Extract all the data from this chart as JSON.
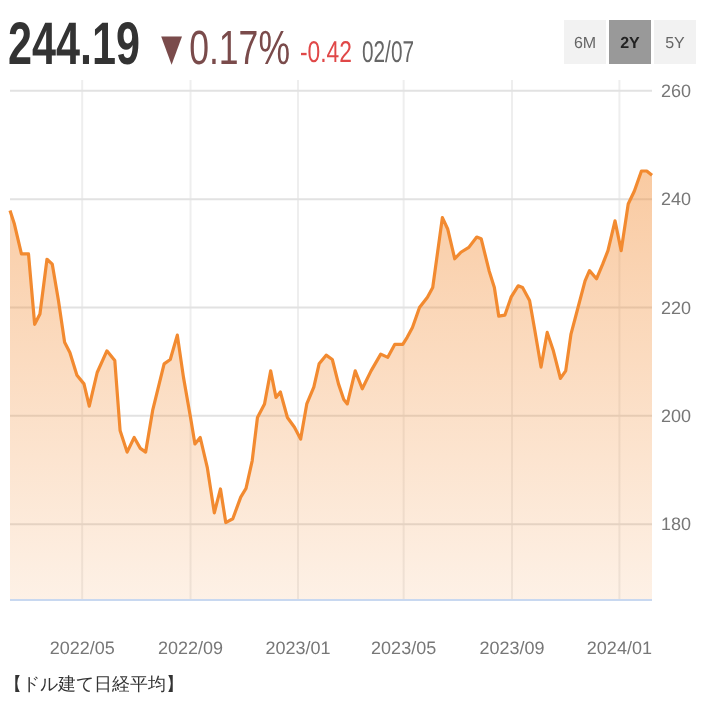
{
  "chart_data": {
    "type": "area",
    "title": "244.19",
    "annotations": [
      "▼0.17%",
      "-0.42",
      "02/07",
      "6M",
      "2Y",
      "5Y",
      "【ドル建て日経平均】"
    ],
    "color": "#f28a30",
    "grid": true,
    "xlim": [
      "2022-02-08",
      "2024-02-07"
    ],
    "ylim": [
      166,
      262
    ],
    "xticks": [
      {
        "value": "2022-05-01",
        "label": "2022/05"
      },
      {
        "value": "2022-09-01",
        "label": "2022/09"
      },
      {
        "value": "2023-01-01",
        "label": "2023/01"
      },
      {
        "value": "2023-05-01",
        "label": "2023/05"
      },
      {
        "value": "2023-09-01",
        "label": "2023/09"
      },
      {
        "value": "2024-01-01",
        "label": "2024/01"
      }
    ],
    "yticks": [
      180,
      200,
      220,
      240,
      260
    ],
    "x": [
      "2022-02-08",
      "2022-02-13",
      "2022-02-21",
      "2022-03-01",
      "2022-03-08",
      "2022-03-14",
      "2022-03-22",
      "2022-03-28",
      "2022-04-04",
      "2022-04-11",
      "2022-04-17",
      "2022-04-25",
      "2022-05-03",
      "2022-05-09",
      "2022-05-18",
      "2022-05-29",
      "2022-06-07",
      "2022-06-13",
      "2022-06-21",
      "2022-06-29",
      "2022-07-06",
      "2022-07-12",
      "2022-07-20",
      "2022-08-02",
      "2022-08-09",
      "2022-08-17",
      "2022-08-24",
      "2022-09-01",
      "2022-09-06",
      "2022-09-12",
      "2022-09-20",
      "2022-09-28",
      "2022-10-05",
      "2022-10-11",
      "2022-10-19",
      "2022-10-28",
      "2022-11-03",
      "2022-11-10",
      "2022-11-16",
      "2022-11-24",
      "2022-12-01",
      "2022-12-07",
      "2022-12-12",
      "2022-12-20",
      "2022-12-28",
      "2023-01-04",
      "2023-01-11",
      "2023-01-19",
      "2023-01-25",
      "2023-02-02",
      "2023-02-09",
      "2023-02-16",
      "2023-02-22",
      "2023-02-26",
      "2023-03-07",
      "2023-03-15",
      "2023-03-25",
      "2023-04-05",
      "2023-04-13",
      "2023-04-21",
      "2023-04-30",
      "2023-05-05",
      "2023-05-11",
      "2023-05-19",
      "2023-05-28",
      "2023-06-03",
      "2023-06-14",
      "2023-06-20",
      "2023-06-28",
      "2023-07-05",
      "2023-07-14",
      "2023-07-23",
      "2023-07-28",
      "2023-08-06",
      "2023-08-12",
      "2023-08-17",
      "2023-08-24",
      "2023-08-31",
      "2023-09-08",
      "2023-09-13",
      "2023-09-21",
      "2023-09-27",
      "2023-10-04",
      "2023-10-11",
      "2023-10-18",
      "2023-10-26",
      "2023-11-01",
      "2023-11-07",
      "2023-11-15",
      "2023-11-23",
      "2023-11-28",
      "2023-12-06",
      "2023-12-13",
      "2023-12-19",
      "2023-12-27",
      "2024-01-03",
      "2024-01-11",
      "2024-01-18",
      "2024-01-26",
      "2024-02-01",
      "2024-02-07"
    ],
    "values": [
      237.9,
      235.4,
      229.9,
      229.9,
      216.9,
      218.8,
      228.9,
      228.0,
      221.3,
      213.6,
      211.7,
      207.5,
      205.9,
      201.8,
      208.0,
      212.0,
      210.2,
      197.3,
      193.3,
      196.0,
      194.0,
      193.3,
      201.0,
      209.6,
      210.4,
      214.9,
      207.1,
      199.7,
      194.8,
      196.0,
      190.5,
      182.1,
      186.5,
      180.3,
      181.0,
      185.0,
      186.6,
      191.7,
      199.7,
      202.2,
      208.3,
      203.4,
      204.4,
      199.7,
      197.9,
      195.7,
      202.2,
      205.3,
      209.6,
      211.2,
      210.4,
      205.9,
      203.0,
      202.2,
      208.3,
      205.0,
      208.3,
      211.4,
      210.8,
      213.2,
      213.2,
      214.5,
      216.3,
      220.0,
      221.9,
      223.7,
      236.6,
      234.5,
      229.0,
      230.2,
      231.1,
      233.0,
      232.7,
      226.8,
      223.7,
      218.4,
      218.6,
      221.9,
      224.0,
      223.7,
      221.3,
      215.7,
      209.0,
      215.4,
      212.0,
      206.9,
      208.3,
      215.1,
      220.0,
      224.9,
      226.8,
      225.3,
      228.0,
      230.5,
      236.0,
      230.5,
      239.1,
      241.5,
      245.2,
      245.2,
      244.4
    ]
  }
}
